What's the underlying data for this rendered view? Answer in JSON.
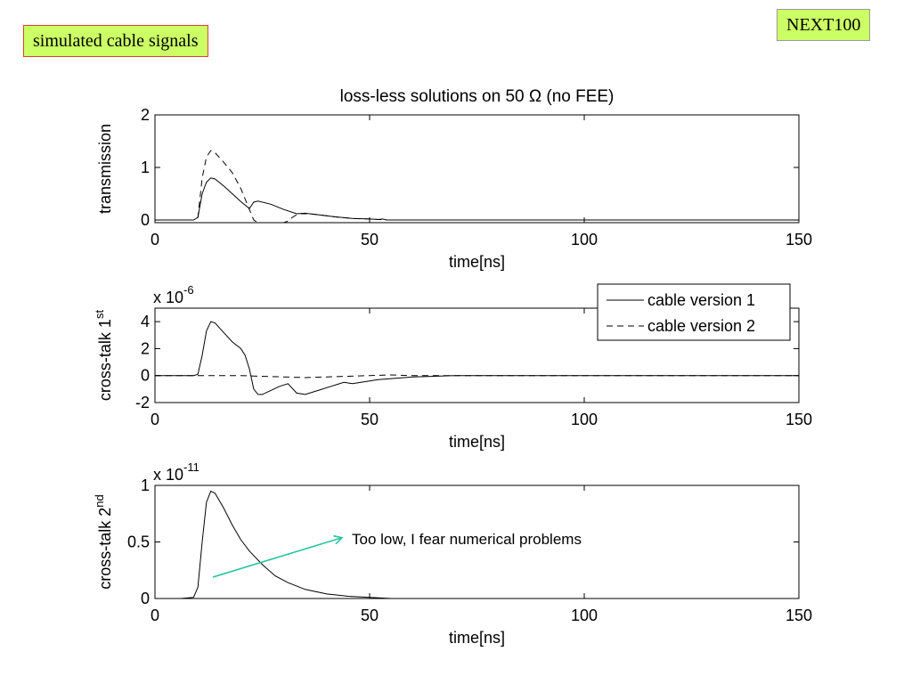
{
  "slide": {
    "title": "simulated cable signals",
    "tag": "NEXT100"
  },
  "annotation": {
    "text": "Too low, I fear numerical problems",
    "arrow_color": "#22c4a0"
  },
  "chart_data": [
    {
      "type": "line",
      "title": "loss-less solutions on 50 Ω (no FEE)",
      "xlabel": "time[ns]",
      "ylabel": "transmission",
      "xlim": [
        0,
        150
      ],
      "ylim": [
        -0.05,
        2
      ],
      "xticks": [
        0,
        50,
        100,
        150
      ],
      "yticks": [
        0,
        1,
        2
      ],
      "series": [
        {
          "legend_ref": 0,
          "style": "solid",
          "x": [
            0,
            9,
            10,
            11,
            12,
            13,
            14,
            16,
            18,
            20,
            22,
            23,
            24,
            27,
            30,
            33,
            35,
            38,
            42,
            46,
            50,
            52,
            53,
            54,
            150
          ],
          "y": [
            0,
            0,
            0.05,
            0.5,
            0.72,
            0.8,
            0.78,
            0.65,
            0.5,
            0.35,
            0.22,
            0.34,
            0.36,
            0.3,
            0.2,
            0.12,
            0.13,
            0.1,
            0.06,
            0.03,
            0.02,
            0.01,
            0.02,
            0,
            0
          ]
        },
        {
          "legend_ref": 1,
          "style": "dashed",
          "x": [
            0,
            9,
            10,
            11,
            12,
            13,
            14,
            16,
            18,
            20,
            22,
            23,
            24,
            26,
            30,
            31,
            32,
            33,
            34,
            36,
            38,
            42,
            46,
            50,
            54,
            150
          ],
          "y": [
            0,
            0,
            0.05,
            0.8,
            1.2,
            1.32,
            1.28,
            1.1,
            0.9,
            0.6,
            0.2,
            0,
            -0.05,
            -0.05,
            -0.05,
            -0.02,
            0.05,
            0.1,
            0.12,
            0.12,
            0.1,
            0.06,
            0.03,
            0.02,
            0,
            0
          ]
        }
      ]
    },
    {
      "type": "line",
      "xlabel": "time[ns]",
      "ylabel": "cross-talk 1",
      "ylabel_sup": "st",
      "scale_label": "x 10",
      "scale_exp": "-6",
      "xlim": [
        0,
        150
      ],
      "ylim": [
        -2,
        5
      ],
      "xticks": [
        0,
        50,
        100,
        150
      ],
      "yticks": [
        -2,
        0,
        2,
        4
      ],
      "legend": {
        "position": "top-right",
        "entries": [
          "cable version 1",
          "cable version 2"
        ]
      },
      "series": [
        {
          "legend_ref": 0,
          "style": "solid",
          "x": [
            0,
            9,
            10,
            11,
            12,
            13,
            14,
            16,
            18,
            20,
            21,
            22,
            23,
            24,
            25,
            27,
            29,
            31,
            33,
            35,
            38,
            41,
            44,
            46,
            48,
            52,
            56,
            60,
            65,
            70,
            150
          ],
          "y": [
            0,
            0,
            0.1,
            1.5,
            3.3,
            4.0,
            3.9,
            3.2,
            2.5,
            2.0,
            1.5,
            0.5,
            -1.0,
            -1.4,
            -1.4,
            -1.1,
            -0.8,
            -0.6,
            -1.3,
            -1.4,
            -1.1,
            -0.8,
            -0.5,
            -0.6,
            -0.5,
            -0.3,
            -0.2,
            -0.1,
            -0.05,
            0,
            0
          ]
        },
        {
          "legend_ref": 1,
          "style": "dashed",
          "x": [
            0,
            10,
            15,
            20,
            25,
            30,
            35,
            40,
            45,
            50,
            55,
            60,
            65,
            70,
            75,
            80,
            85,
            90,
            95,
            100,
            105,
            110,
            115,
            120,
            125,
            130,
            135,
            140,
            145,
            150
          ],
          "y": [
            0,
            0,
            0,
            0,
            -0.05,
            -0.1,
            -0.15,
            -0.1,
            -0.05,
            0,
            0.05,
            0,
            0,
            0,
            0,
            0,
            0,
            0,
            0,
            0,
            0,
            0,
            0,
            0,
            0,
            0,
            0,
            0,
            0,
            0
          ]
        }
      ]
    },
    {
      "type": "line",
      "xlabel": "time[ns]",
      "ylabel": "cross-talk 2",
      "ylabel_sup": "nd",
      "scale_label": "x 10",
      "scale_exp": "-11",
      "xlim": [
        0,
        150
      ],
      "ylim": [
        0,
        1
      ],
      "xticks": [
        0,
        50,
        100,
        150
      ],
      "yticks": [
        0,
        0.5,
        1
      ],
      "series": [
        {
          "legend_ref": 0,
          "style": "solid",
          "x": [
            0,
            6,
            9,
            10,
            11,
            12,
            13,
            14,
            16,
            18,
            20,
            22,
            25,
            28,
            31,
            35,
            40,
            45,
            50,
            55,
            150
          ],
          "y": [
            0,
            0,
            0.01,
            0.1,
            0.5,
            0.85,
            0.95,
            0.93,
            0.8,
            0.65,
            0.52,
            0.42,
            0.3,
            0.2,
            0.14,
            0.08,
            0.04,
            0.02,
            0.01,
            0,
            0
          ]
        }
      ]
    }
  ]
}
